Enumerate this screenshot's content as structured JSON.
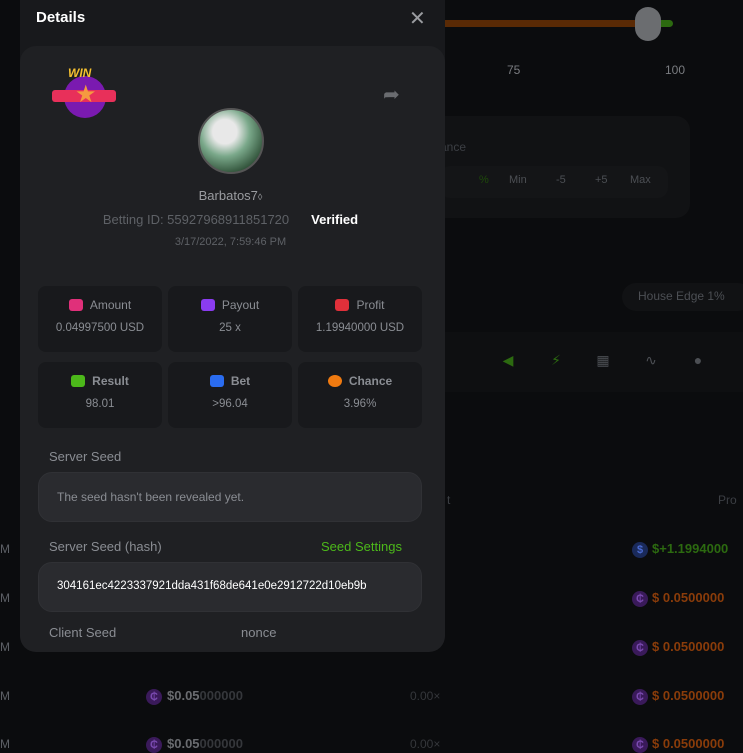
{
  "background": {
    "slider": {
      "value_fraction": 0.96,
      "ticks": [
        "75",
        "100"
      ]
    },
    "chance_label_partial": "ance",
    "chance_buttons": [
      "%",
      "Min",
      "-5",
      "+5",
      "Max"
    ],
    "house_edge": "House Edge 1%",
    "toolbar_icons": [
      "horn-icon",
      "lightning-icon",
      "keyboard-icon",
      "curve-icon",
      "acorn-icon"
    ],
    "table_headers": [
      "t",
      "Pro"
    ],
    "rows": [
      {
        "time": "M",
        "amount_prefix": "",
        "amount_rest": "",
        "payout": "",
        "profit": "$+1.1994000",
        "win": true
      },
      {
        "time": "M",
        "amount_prefix": "",
        "amount_rest": "",
        "payout": "",
        "profit": "$ 0.0500000",
        "win": false
      },
      {
        "time": "M",
        "amount_prefix": "",
        "amount_rest": "",
        "payout": "",
        "profit": "$ 0.0500000",
        "win": false
      },
      {
        "time": "M",
        "amount_prefix": "$0.05",
        "amount_rest": "000000",
        "payout": "0.00×",
        "profit": "$ 0.0500000",
        "win": false
      },
      {
        "time": "M",
        "amount_prefix": "$0.05",
        "amount_rest": "000000",
        "payout": "0.00×",
        "profit": "$ 0.0500000",
        "win": false
      }
    ]
  },
  "modal": {
    "title": "Details",
    "close_icon": "close-icon",
    "badge": "WIN",
    "username": "Barbatos7",
    "betting_id": "Betting ID: 55927968911851720",
    "verified": "Verified",
    "timestamp": "3/17/2022, 7:59:46 PM",
    "stats": [
      {
        "label": "Amount",
        "value": "0.04997500 USD",
        "icon": "money-hand-icon",
        "color": "#e0307a"
      },
      {
        "label": "Payout",
        "value": "25 x",
        "icon": "card-icon",
        "color": "#8a3cf0"
      },
      {
        "label": "Profit",
        "value": "1.19940000 USD",
        "icon": "profit-hand-icon",
        "color": "#e0303a"
      },
      {
        "label": "Result",
        "value": "98.01",
        "icon": "chart-check-icon",
        "color": "#4cb81a"
      },
      {
        "label": "Bet",
        "value": ">96.04",
        "icon": "wallet-icon",
        "color": "#2a6cf0"
      },
      {
        "label": "Chance",
        "value": "3.96%",
        "icon": "percent-icon",
        "color": "#f07a10"
      }
    ],
    "server_seed_label": "Server Seed",
    "server_seed_value": "The seed hasn't been revealed yet.",
    "server_seed_hash_label": "Server Seed (hash)",
    "seed_settings": "Seed Settings",
    "server_seed_hash": "304161ec4223337921dda431f68de641e0e2912722d10eb9b",
    "client_seed_label": "Client Seed",
    "nonce_label": "nonce",
    "accent": "#4cb81a"
  }
}
